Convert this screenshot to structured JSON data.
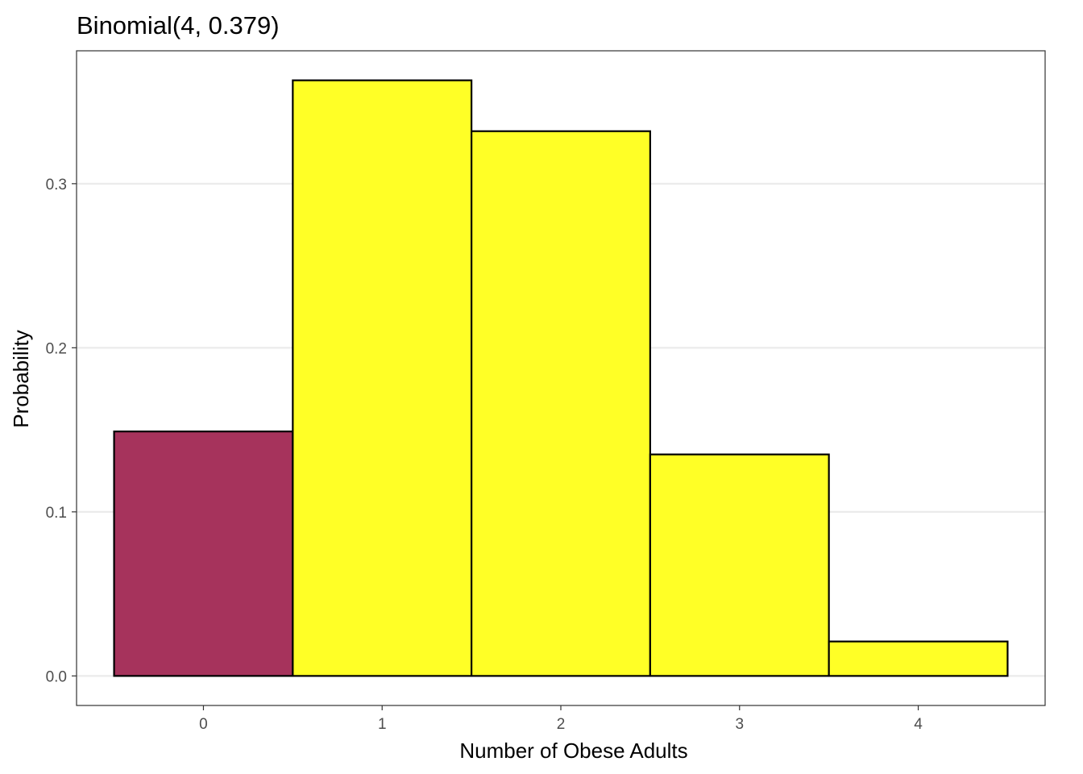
{
  "chart_data": {
    "type": "bar",
    "title": "Binomial(4, 0.379)",
    "xlabel": "Number of Obese Adults",
    "ylabel": "Probability",
    "categories": [
      "0",
      "1",
      "2",
      "3",
      "4"
    ],
    "x": [
      0,
      1,
      2,
      3,
      4
    ],
    "values": [
      0.149,
      0.363,
      0.332,
      0.135,
      0.021
    ],
    "bar_colors": [
      "#a6335c",
      "#ffff26",
      "#ffff26",
      "#ffff26",
      "#ffff26"
    ],
    "bar_outline": "#000000",
    "xlim": [
      -0.71,
      4.71
    ],
    "ylim": [
      -0.018,
      0.381
    ],
    "yticks": [
      0.0,
      0.1,
      0.2,
      0.3
    ],
    "ytick_labels": [
      "0.0",
      "0.1",
      "0.2",
      "0.3"
    ],
    "xticks": [
      0,
      1,
      2,
      3,
      4
    ],
    "xtick_labels": [
      "0",
      "1",
      "2",
      "3",
      "4"
    ],
    "grid": "horizontal",
    "grid_color": "#ebebeb",
    "legend": "none"
  }
}
